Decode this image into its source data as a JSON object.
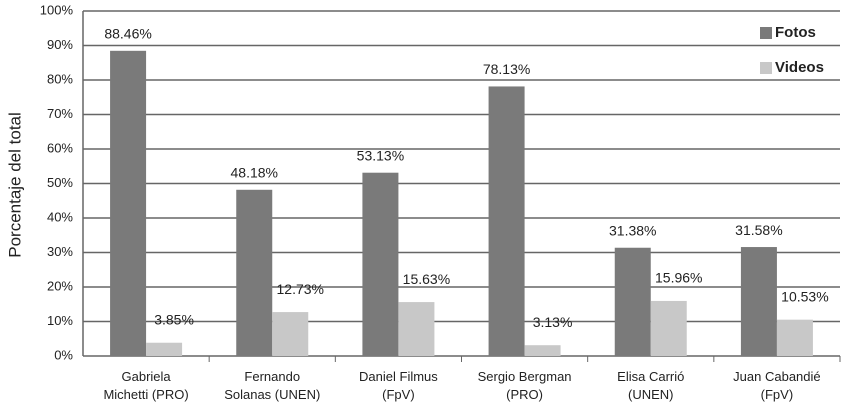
{
  "chart_data": {
    "type": "bar",
    "y_label": "Porcentaje del total",
    "categories": [
      "Gabriela\nMichetti (PRO)",
      "Fernando\nSolanas (UNEN)",
      "Daniel Filmus\n(FpV)",
      "Sergio Bergman\n(PRO)",
      "Elisa Carrió\n(UNEN)",
      "Juan Cabandié\n(FpV)"
    ],
    "series": [
      {
        "name": "Fotos",
        "color": "#7a7a7a",
        "values": [
          88.46,
          48.18,
          53.13,
          78.13,
          31.38,
          31.58
        ],
        "value_labels": [
          "88.46%",
          "48.18%",
          "53.13%",
          "78.13%",
          "31.38%",
          "31.58%"
        ]
      },
      {
        "name": "Videos",
        "color": "#c8c8c8",
        "values": [
          3.85,
          12.73,
          15.63,
          3.13,
          15.96,
          10.53
        ],
        "value_labels": [
          "3.85%",
          "12.73%",
          "15.63%",
          "3.13%",
          "15.96%",
          "10.53%"
        ]
      }
    ],
    "ylim": [
      0,
      100
    ],
    "yticks": [
      {
        "value": 0,
        "label": "0%"
      },
      {
        "value": 10,
        "label": "10%"
      },
      {
        "value": 20,
        "label": "20%"
      },
      {
        "value": 30,
        "label": "30%"
      },
      {
        "value": 40,
        "label": "40%"
      },
      {
        "value": 50,
        "label": "50%"
      },
      {
        "value": 60,
        "label": "60%"
      },
      {
        "value": 70,
        "label": "70%"
      },
      {
        "value": 80,
        "label": "80%"
      },
      {
        "value": 90,
        "label": "90%"
      },
      {
        "value": 100,
        "label": "100%"
      }
    ],
    "grid": true,
    "legend": "top-right"
  }
}
